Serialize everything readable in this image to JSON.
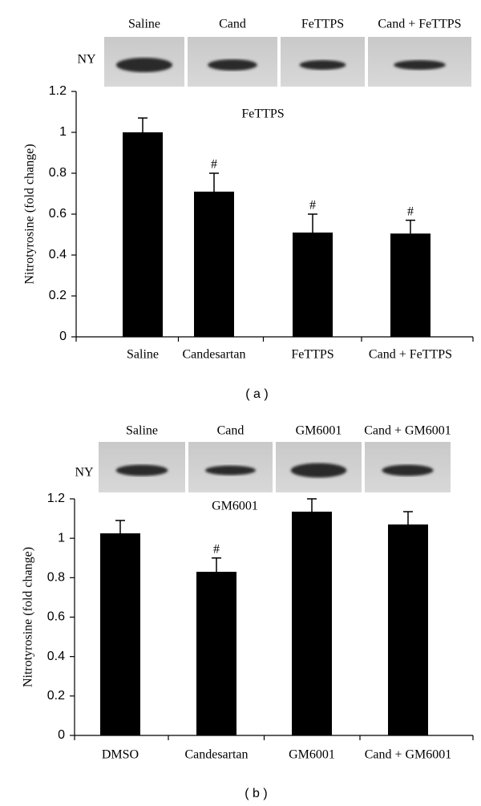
{
  "chart_data": [
    {
      "type": "bar",
      "panel_label": "( a )",
      "blot_labels": [
        "Saline",
        "Cand",
        "FeTTPS",
        "Cand + FeTTPS"
      ],
      "blot_row_label": "NY",
      "annotation": "FeTTPS",
      "ylabel": "Nitrotyrosine (fold change)",
      "categories": [
        "Saline",
        "Candesartan",
        "FeTTPS",
        "Cand + FeTTPS"
      ],
      "values": [
        1.0,
        0.71,
        0.51,
        0.505
      ],
      "errors": [
        0.07,
        0.09,
        0.09,
        0.065
      ],
      "significance": [
        null,
        "#",
        "#",
        "#"
      ],
      "color": "#000000",
      "ylim": [
        0,
        1.2
      ],
      "yticks": [
        0,
        0.2,
        0.4,
        0.6,
        0.8,
        1,
        1.2
      ]
    },
    {
      "type": "bar",
      "panel_label": "( b )",
      "blot_labels": [
        "Saline",
        "Cand",
        "GM6001",
        "Cand + GM6001"
      ],
      "blot_row_label": "NY",
      "annotation": "GM6001",
      "ylabel": "Nitrotyrosine (fold change)",
      "categories": [
        "DMSO",
        "Candesartan",
        "GM6001",
        "Cand + GM6001"
      ],
      "values": [
        1.025,
        0.83,
        1.135,
        1.07
      ],
      "errors": [
        0.065,
        0.07,
        0.065,
        0.065
      ],
      "significance": [
        null,
        "#",
        null,
        null
      ],
      "color": "#000000",
      "ylim": [
        0,
        1.2
      ],
      "yticks": [
        0,
        0.2,
        0.4,
        0.6,
        0.8,
        1,
        1.2
      ]
    }
  ]
}
